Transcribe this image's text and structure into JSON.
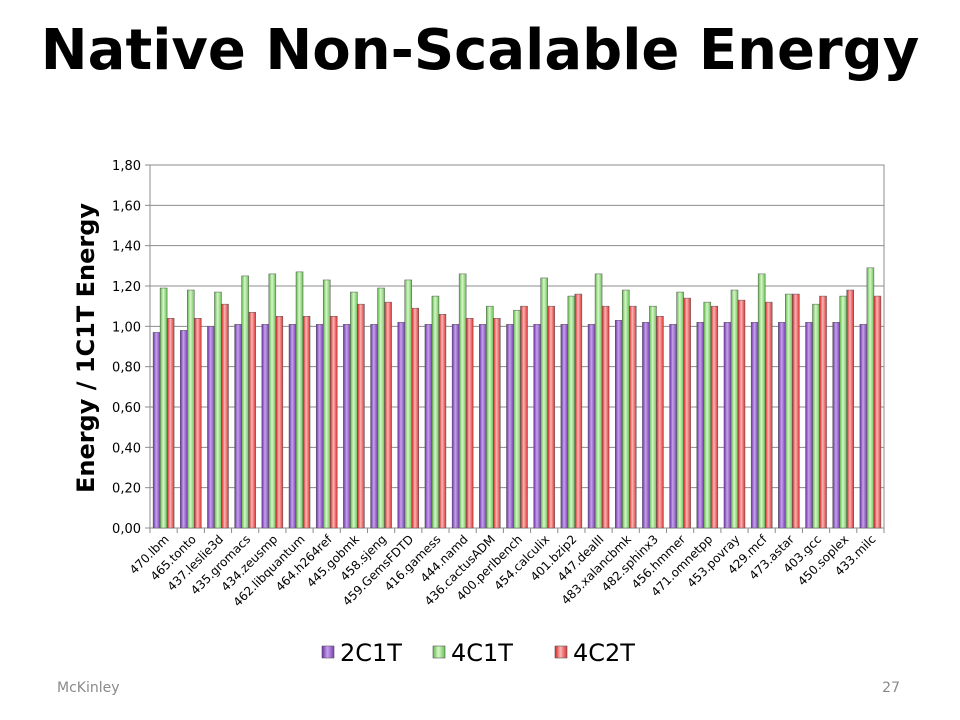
{
  "slide": {
    "title": "Native Non-Scalable Energy",
    "footer_left": "McKinley",
    "page_number": "27"
  },
  "chart_data": {
    "type": "bar",
    "title": "Native Non-Scalable Energy",
    "xlabel": "",
    "ylabel": "Energy / 1C1T Energy",
    "ylim": [
      0,
      1.8
    ],
    "yticks": [
      "0,00",
      "0,20",
      "0,40",
      "0,60",
      "0,80",
      "1,00",
      "1,20",
      "1,40",
      "1,60",
      "1,80"
    ],
    "grid": true,
    "legend_position": "bottom",
    "categories": [
      "470.lbm",
      "465.tonto",
      "437.leslie3d",
      "435.gromacs",
      "434.zeusmp",
      "462.libquantum",
      "464.h264ref",
      "445.gobmk",
      "458.sjeng",
      "459.GemsFDTD",
      "416.gamess",
      "444.namd",
      "436.cactusADM",
      "400.perlbench",
      "454.calculix",
      "401.bzip2",
      "447.dealII",
      "483.xalancbmk",
      "482.sphinx3",
      "456.hmmer",
      "471.omnetpp",
      "453.povray",
      "429.mcf",
      "473.astar",
      "403.gcc",
      "450.soplex",
      "433.milc"
    ],
    "series": [
      {
        "name": "2C1T",
        "color": "#8b4fc4",
        "values": [
          0.97,
          0.98,
          1.0,
          1.01,
          1.01,
          1.01,
          1.01,
          1.01,
          1.01,
          1.02,
          1.01,
          1.01,
          1.01,
          1.01,
          1.01,
          1.01,
          1.01,
          1.03,
          1.02,
          1.01,
          1.02,
          1.02,
          1.02,
          1.02,
          1.02,
          1.02,
          1.01
        ]
      },
      {
        "name": "4C1T",
        "color": "#7ed26a",
        "values": [
          1.19,
          1.18,
          1.17,
          1.25,
          1.26,
          1.27,
          1.23,
          1.17,
          1.19,
          1.23,
          1.15,
          1.26,
          1.1,
          1.08,
          1.24,
          1.15,
          1.26,
          1.18,
          1.1,
          1.17,
          1.12,
          1.18,
          1.26,
          1.16,
          1.11,
          1.15,
          1.29
        ]
      },
      {
        "name": "4C2T",
        "color": "#ee4848",
        "values": [
          1.04,
          1.04,
          1.11,
          1.07,
          1.05,
          1.05,
          1.05,
          1.11,
          1.12,
          1.09,
          1.06,
          1.04,
          1.04,
          1.1,
          1.1,
          1.16,
          1.1,
          1.1,
          1.05,
          1.14,
          1.1,
          1.13,
          1.12,
          1.16,
          1.15,
          1.18,
          1.15
        ]
      }
    ]
  }
}
